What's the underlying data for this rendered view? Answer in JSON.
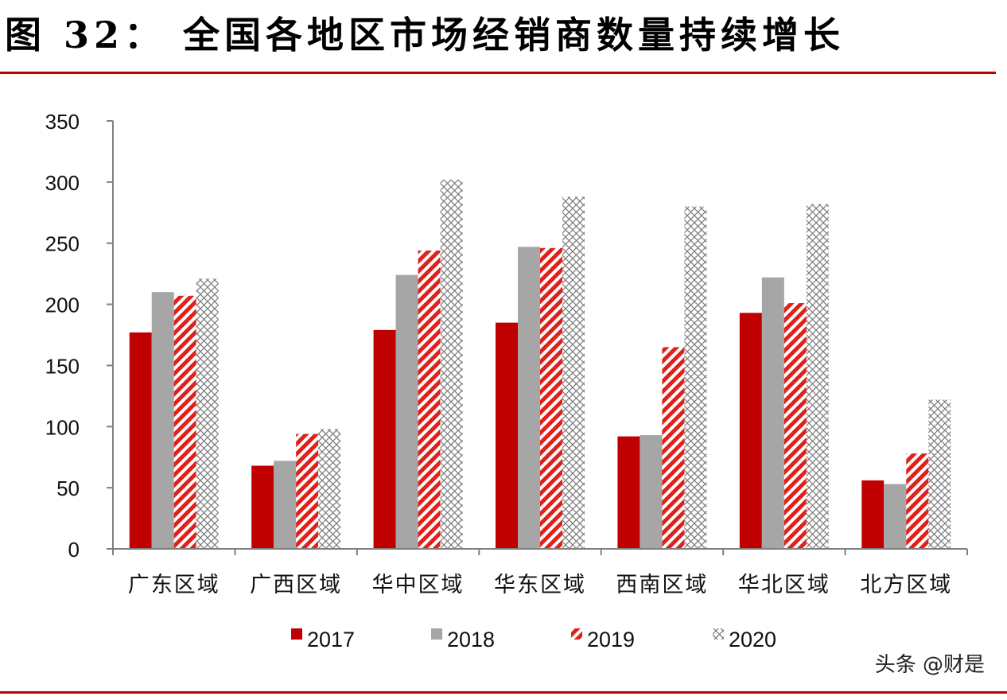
{
  "title": "图 32：  全国各地区市场经销商数量持续增长",
  "watermark": "头条 @财是",
  "colors": {
    "title_rule": "#c00000",
    "s2017": "#c00000",
    "s2018": "#a6a6a6",
    "s2019": "#e0201a",
    "s2020": "#8c8c8c"
  },
  "chart_data": {
    "type": "bar",
    "title": "",
    "xlabel": "",
    "ylabel": "",
    "ylim": [
      0,
      350
    ],
    "yticks": [
      "0",
      "50",
      "100",
      "150",
      "200",
      "250",
      "300",
      "350"
    ],
    "grid": false,
    "legend": "bottom",
    "categories": [
      "广东区域",
      "广西区域",
      "华中区域",
      "华东区域",
      "西南区域",
      "华北区域",
      "北方区域"
    ],
    "series": [
      {
        "name": "2017",
        "pattern": "solid",
        "values": [
          177,
          68,
          179,
          185,
          92,
          193,
          56
        ]
      },
      {
        "name": "2018",
        "pattern": "solid",
        "values": [
          210,
          72,
          224,
          247,
          93,
          222,
          53
        ]
      },
      {
        "name": "2019",
        "pattern": "diagonal-stripes",
        "values": [
          207,
          94,
          244,
          246,
          165,
          201,
          78
        ]
      },
      {
        "name": "2020",
        "pattern": "crosshatch",
        "values": [
          221,
          98,
          302,
          288,
          280,
          282,
          122
        ]
      }
    ]
  }
}
